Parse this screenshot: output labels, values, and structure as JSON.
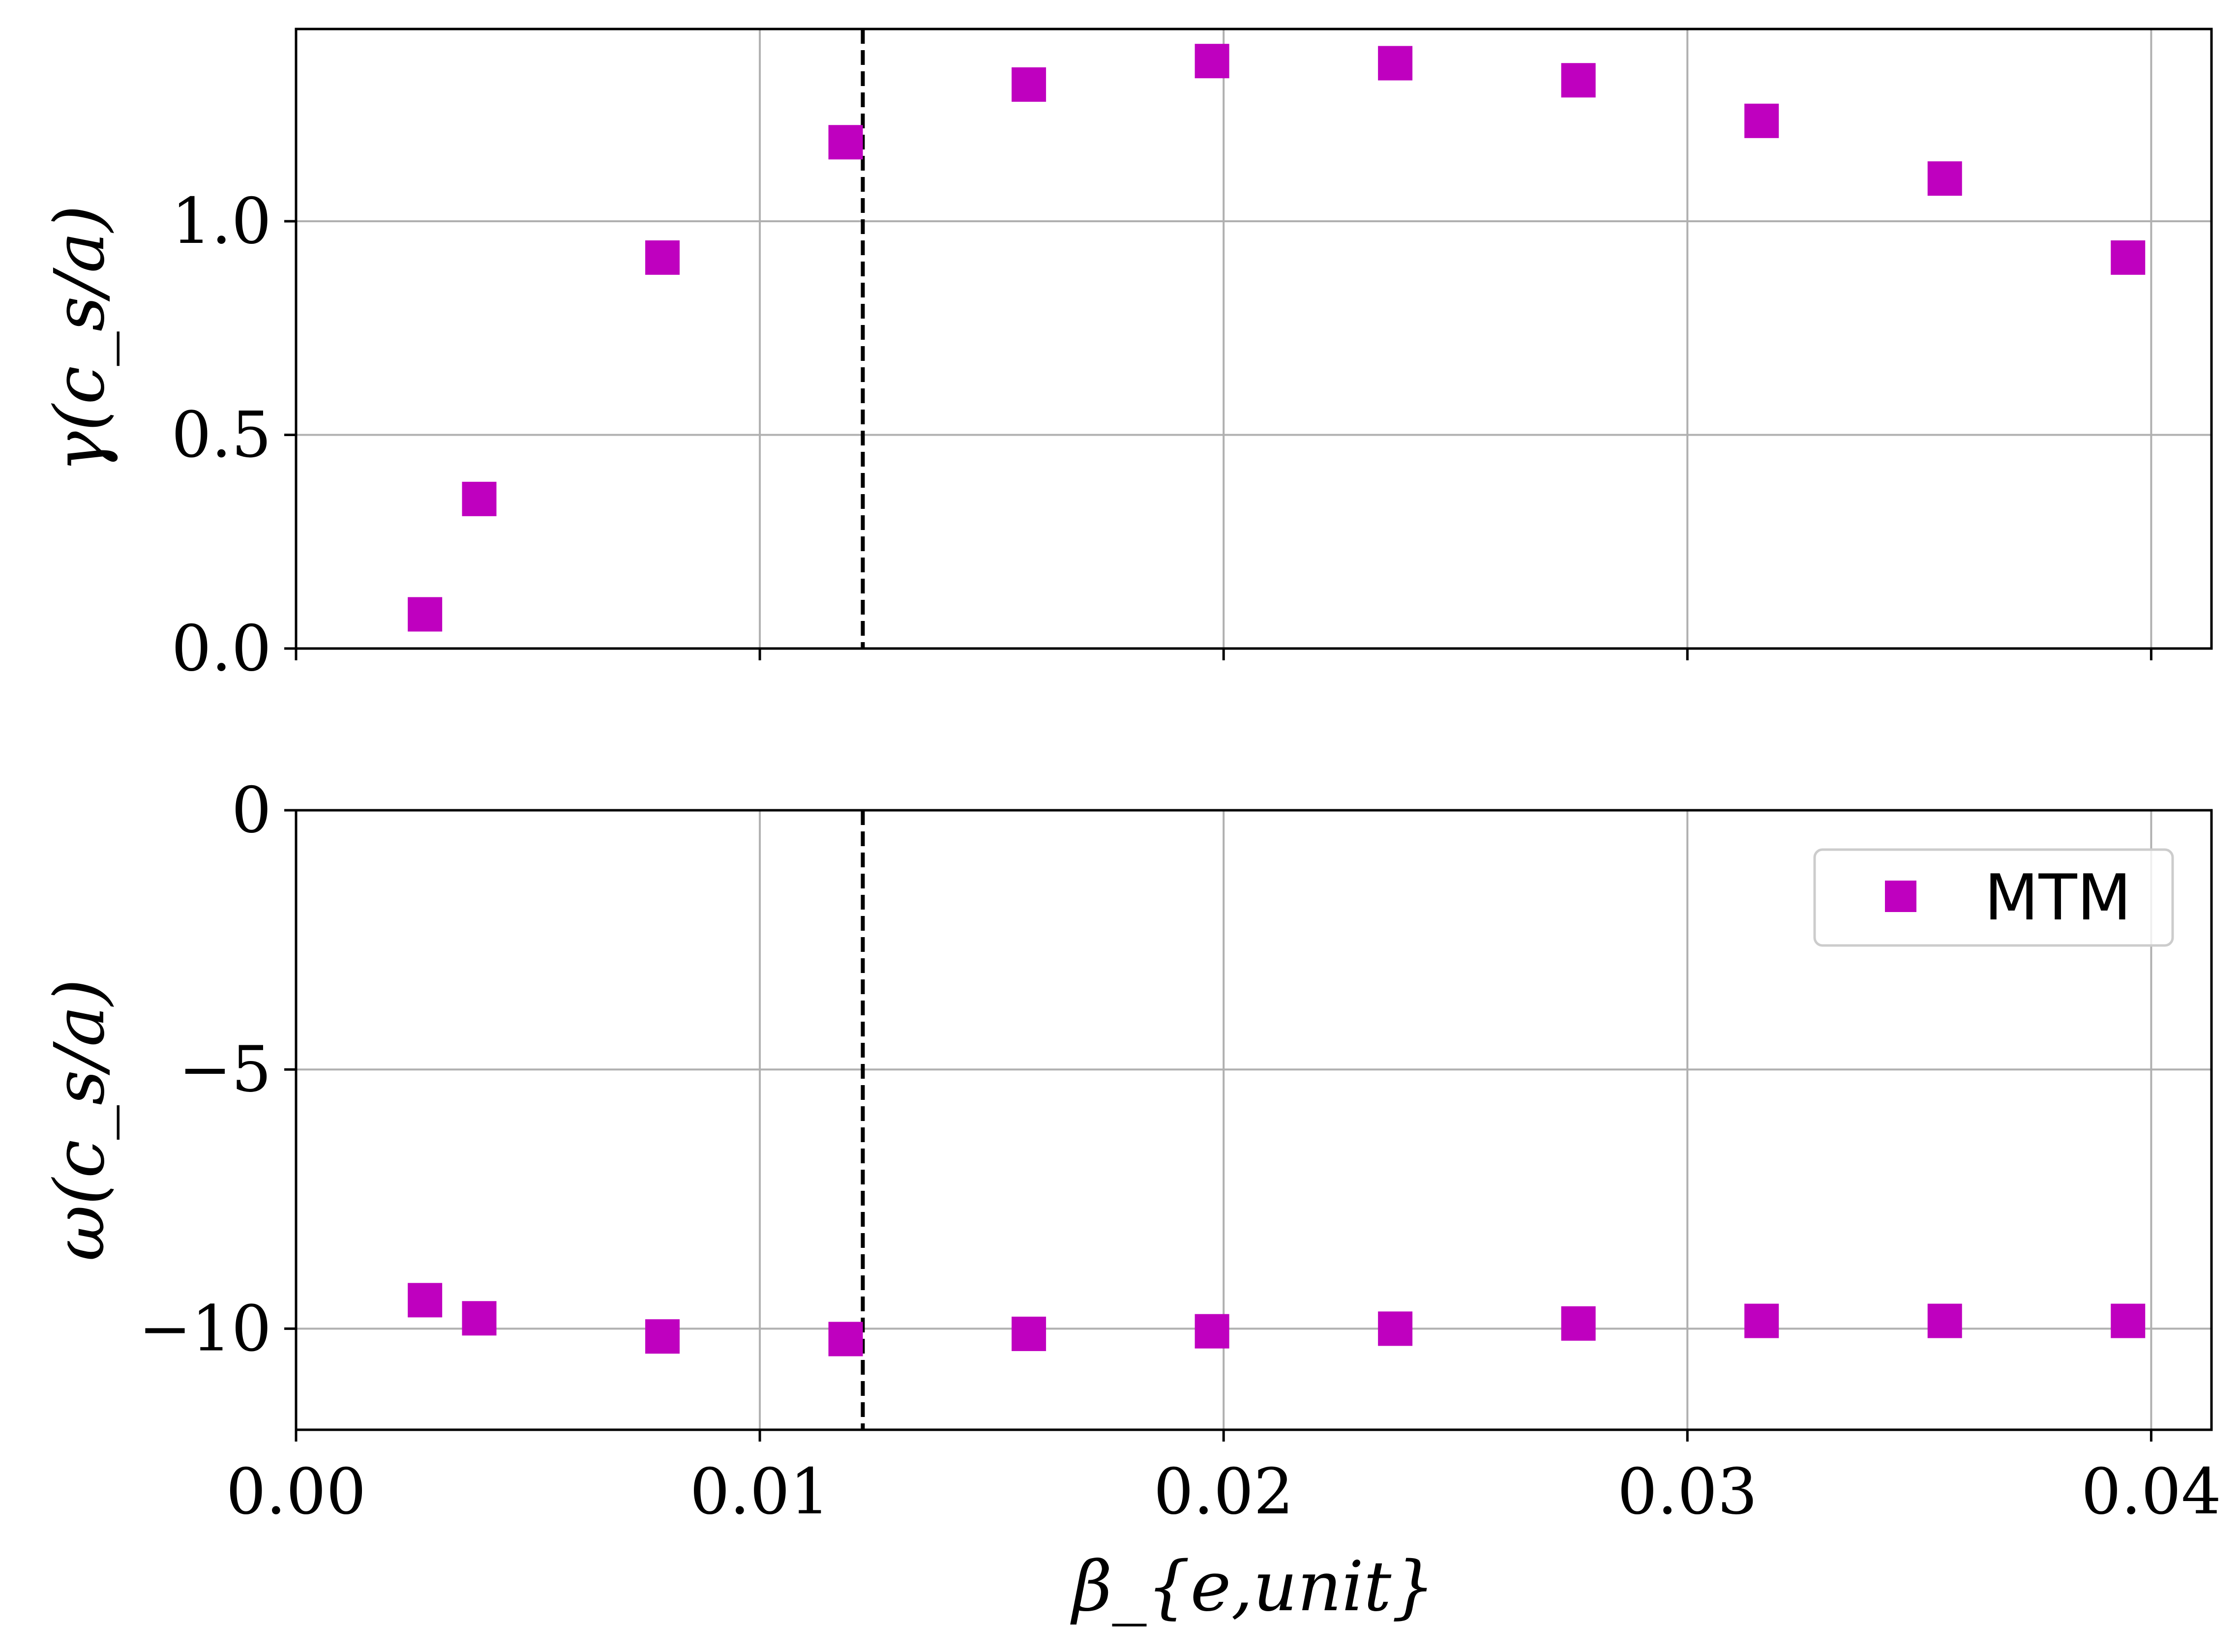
{
  "chart_data": [
    {
      "type": "scatter",
      "panel": "top",
      "ylabel": "γ(c_s/a)",
      "xlim": [
        0.0,
        0.0413
      ],
      "ylim": [
        0.0,
        1.45
      ],
      "x_ticks": [
        0.0,
        0.01,
        0.02,
        0.03,
        0.04
      ],
      "x_tick_labels": [
        "",
        "",
        "",
        "",
        ""
      ],
      "y_ticks": [
        0.0,
        0.5,
        1.0
      ],
      "y_tick_labels": [
        "0.0",
        "0.5",
        "1.0"
      ],
      "grid": true,
      "vline_x": 0.01222,
      "vline_style": "dashed",
      "marker": "square",
      "color": "#bf00bf",
      "series": [
        {
          "name": "MTM",
          "x": [
            0.00278,
            0.00395,
            0.0079,
            0.01185,
            0.0158,
            0.01975,
            0.0237,
            0.02765,
            0.0316,
            0.03555,
            0.0395
          ],
          "y": [
            0.08,
            0.35,
            0.915,
            1.185,
            1.32,
            1.375,
            1.37,
            1.33,
            1.235,
            1.1,
            0.915
          ]
        }
      ]
    },
    {
      "type": "scatter",
      "panel": "bottom",
      "xlabel": "β_{e,unit}",
      "ylabel": "ω(c_s/a)",
      "xlim": [
        0.0,
        0.0413
      ],
      "ylim": [
        -11.95,
        0.0
      ],
      "x_ticks": [
        0.0,
        0.01,
        0.02,
        0.03,
        0.04
      ],
      "x_tick_labels": [
        "0.00",
        "0.01",
        "0.02",
        "0.03",
        "0.04"
      ],
      "y_ticks": [
        0,
        -5,
        -10
      ],
      "y_tick_labels": [
        "0",
        "−5",
        "−10"
      ],
      "grid": true,
      "vline_x": 0.01222,
      "vline_style": "dashed",
      "marker": "square",
      "color": "#bf00bf",
      "legend": {
        "position": "upper-right",
        "entries": [
          "MTM"
        ]
      },
      "series": [
        {
          "name": "MTM",
          "x": [
            0.00278,
            0.00395,
            0.0079,
            0.01185,
            0.0158,
            0.01975,
            0.0237,
            0.02765,
            0.0316,
            0.03555,
            0.0395
          ],
          "y": [
            -9.45,
            -9.8,
            -10.15,
            -10.2,
            -10.1,
            -10.05,
            -10.0,
            -9.9,
            -9.85,
            -9.85,
            -9.85
          ]
        }
      ]
    }
  ]
}
